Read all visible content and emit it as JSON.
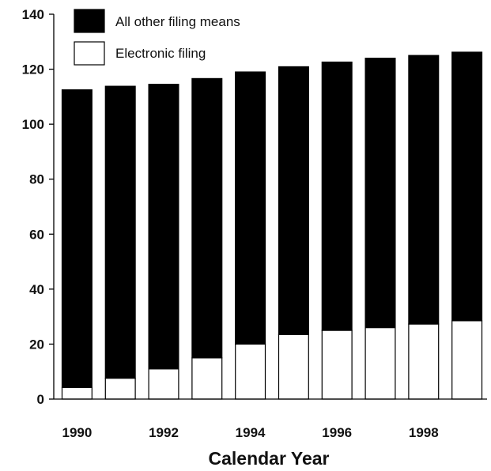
{
  "chart_data": {
    "type": "bar",
    "stacked": true,
    "categories": [
      "1990",
      "1991",
      "1992",
      "1993",
      "1994",
      "1995",
      "1996",
      "1997",
      "1998",
      "1999"
    ],
    "x_tick_labels": [
      "1990",
      "",
      "1992",
      "",
      "1994",
      "",
      "1996",
      "",
      "1998",
      ""
    ],
    "series": [
      {
        "name": "Electronic filing",
        "values": [
          4.2,
          7.6,
          11,
          15,
          20,
          23.5,
          25,
          26,
          27.3,
          28.5
        ],
        "color": "#ffffff"
      },
      {
        "name": "All other filing means",
        "values": [
          108.3,
          106.2,
          103.5,
          101.6,
          99,
          97.4,
          97.6,
          98,
          97.7,
          97.7
        ],
        "color": "#000000"
      }
    ],
    "xlabel": "Calendar Year",
    "ylabel": "",
    "ylim": [
      0,
      140
    ],
    "yticks": [
      0,
      20,
      40,
      60,
      80,
      100,
      120,
      140
    ],
    "grid": false,
    "legend": {
      "placement": "top-left",
      "entries": [
        "All other filing means",
        "Electronic filing"
      ]
    }
  }
}
